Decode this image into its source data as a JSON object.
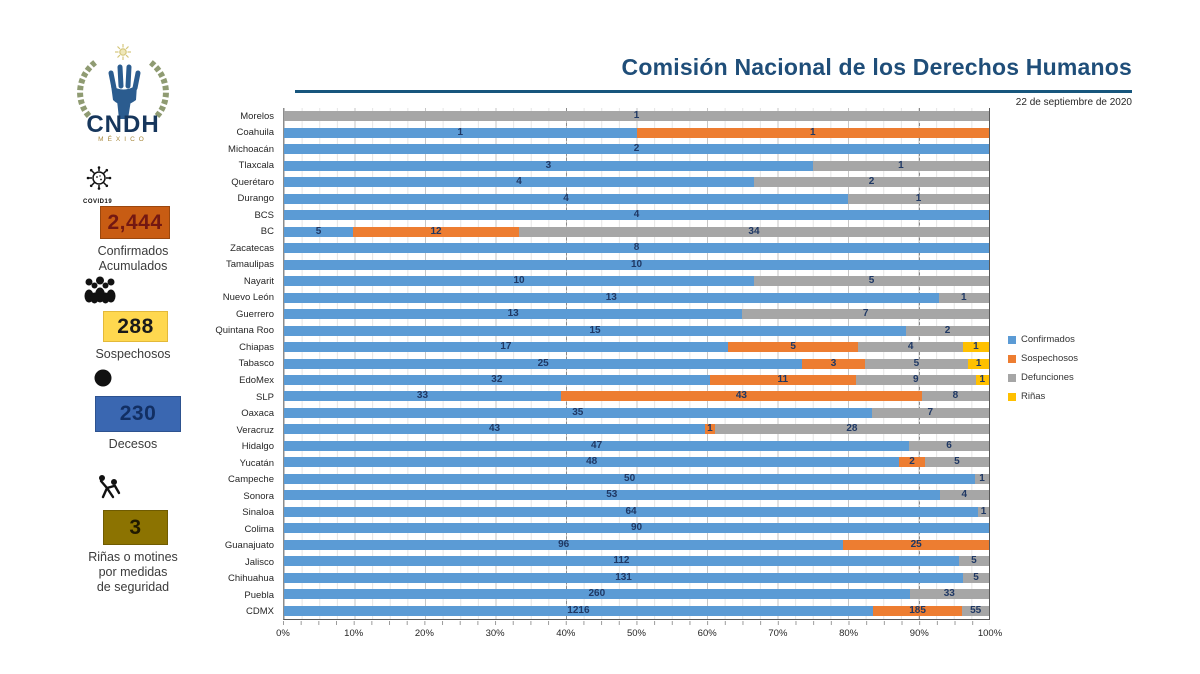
{
  "logo": {
    "acronym": "CNDH",
    "country": "MÉXICO"
  },
  "header": {
    "title": "Comisión Nacional de los Derechos Humanos",
    "date": "22 de septiembre de 2020"
  },
  "sidebar": {
    "stats": [
      {
        "id": "confirmados",
        "icon": "covid-virus-icon",
        "icon_label": "COVID19",
        "value": "2,444",
        "label": "Confirmados\nAcumulados",
        "box_color": "#C85C13",
        "border_color": "#9A470E",
        "value_color": "#731812"
      },
      {
        "id": "sospechosos",
        "icon": "crowd-icon",
        "icon_label": "",
        "value": "288",
        "label": "Sospechosos",
        "box_color": "#FFD84F",
        "border_color": "#E3B93A",
        "value_color": "#1A1A1A"
      },
      {
        "id": "decesos",
        "icon": "circle-icon",
        "icon_label": "",
        "value": "230",
        "label": "Decesos",
        "box_color": "#3A67B1",
        "border_color": "#2D528F",
        "value_color": "#122F63"
      },
      {
        "id": "rinas",
        "icon": "fight-icon",
        "icon_label": "",
        "value": "3",
        "label": "Riñas o motines\npor medidas\nde seguridad",
        "box_color": "#8C7301",
        "border_color": "#6F5B01",
        "value_color": "#201A00"
      }
    ]
  },
  "chart_data": {
    "type": "bar",
    "orientation": "horizontal",
    "stacked": "percent",
    "title": "Comisión Nacional de los Derechos Humanos",
    "xlabel": "",
    "ylabel": "",
    "xlim_percent": [
      0,
      100
    ],
    "grid": "minor 2.5%, major 10%",
    "legend_position": "right",
    "label_color": "#1F3864",
    "categories": [
      "Morelos",
      "Coahuila",
      "Michoacán",
      "Tlaxcala",
      "Querétaro",
      "Durango",
      "BCS",
      "BC",
      "Zacatecas",
      "Tamaulipas",
      "Nayarit",
      "Nuevo León",
      "Guerrero",
      "Quintana Roo",
      "Chiapas",
      "Tabasco",
      "EdoMex",
      "SLP",
      "Oaxaca",
      "Veracruz",
      "Hidalgo",
      "Yucatán",
      "Campeche",
      "Sonora",
      "Sinaloa",
      "Colima",
      "Guanajuato",
      "Jalisco",
      "Chihuahua",
      "Puebla",
      "CDMX"
    ],
    "series": [
      {
        "name": "Confirmados",
        "color": "#5B9BD5",
        "values": [
          0,
          1,
          2,
          3,
          4,
          4,
          4,
          5,
          8,
          10,
          10,
          13,
          13,
          15,
          17,
          25,
          32,
          33,
          35,
          43,
          47,
          48,
          50,
          53,
          64,
          90,
          96,
          112,
          131,
          260,
          1216
        ]
      },
      {
        "name": "Sospechosos",
        "color": "#ED7D31",
        "values": [
          0,
          1,
          0,
          0,
          0,
          0,
          0,
          12,
          0,
          0,
          0,
          0,
          0,
          0,
          5,
          3,
          11,
          43,
          0,
          1,
          0,
          2,
          0,
          0,
          0,
          0,
          25,
          0,
          0,
          0,
          185
        ]
      },
      {
        "name": "Defunciones",
        "color": "#A6A6A6",
        "values": [
          1,
          0,
          0,
          1,
          2,
          1,
          0,
          34,
          0,
          0,
          5,
          1,
          7,
          2,
          4,
          5,
          9,
          8,
          7,
          28,
          6,
          5,
          1,
          4,
          1,
          0,
          0,
          5,
          5,
          33,
          55
        ]
      },
      {
        "name": "Riñas",
        "color": "#FFC000",
        "values": [
          0,
          0,
          0,
          0,
          0,
          0,
          0,
          0,
          0,
          0,
          0,
          0,
          0,
          0,
          1,
          1,
          1,
          0,
          0,
          0,
          0,
          0,
          0,
          0,
          0,
          0,
          0,
          0,
          0,
          0,
          0
        ]
      }
    ],
    "x_tick_labels": [
      "0%",
      "10%",
      "20%",
      "30%",
      "40%",
      "50%",
      "60%",
      "70%",
      "80%",
      "90%",
      "100%"
    ],
    "guide_lines_percent": [
      40,
      90
    ]
  }
}
